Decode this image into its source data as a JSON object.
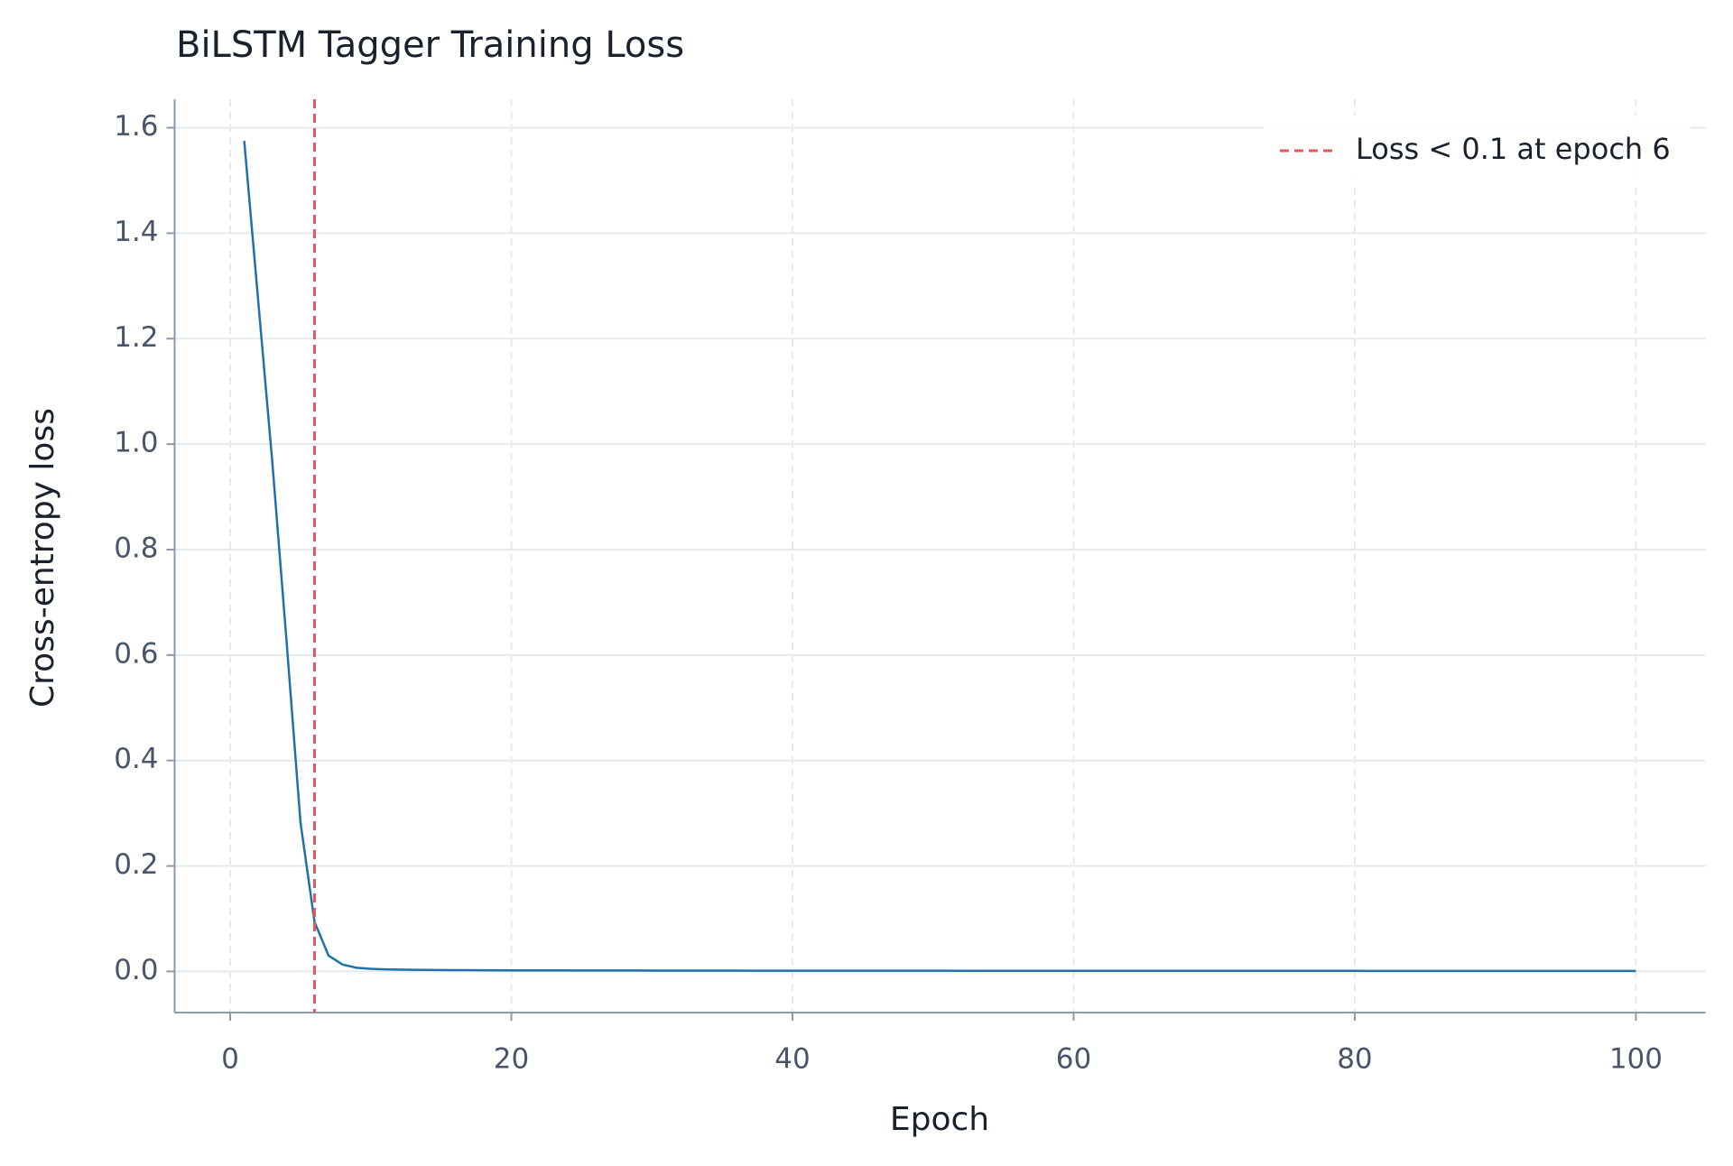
{
  "chart_data": {
    "type": "line",
    "title": "BiLSTM Tagger Training Loss",
    "x_label": "Epoch",
    "y_label": "Cross-entropy loss",
    "x": [
      1,
      2,
      3,
      4,
      5,
      6,
      7,
      8,
      9,
      10,
      11,
      12,
      13,
      14,
      15,
      16,
      17,
      18,
      19,
      20,
      21,
      22,
      23,
      24,
      25,
      26,
      27,
      28,
      29,
      30,
      31,
      32,
      33,
      34,
      35,
      36,
      37,
      38,
      39,
      40,
      41,
      42,
      43,
      44,
      45,
      46,
      47,
      48,
      49,
      50,
      51,
      52,
      53,
      54,
      55,
      56,
      57,
      58,
      59,
      60,
      61,
      62,
      63,
      64,
      65,
      66,
      67,
      68,
      69,
      70,
      71,
      72,
      73,
      74,
      75,
      76,
      77,
      78,
      79,
      80,
      81,
      82,
      83,
      84,
      85,
      86,
      87,
      88,
      89,
      90,
      91,
      92,
      93,
      94,
      95,
      96,
      97,
      98,
      99,
      100
    ],
    "series": [
      {
        "color": "#2070aa",
        "values": [
          1.575,
          1.27,
          0.965,
          0.63,
          0.283,
          0.094,
          0.03,
          0.013,
          0.007,
          0.005,
          0.004,
          0.0035,
          0.0031,
          0.0028,
          0.0026,
          0.0025,
          0.0024,
          0.0023,
          0.0022,
          0.0021,
          0.002,
          0.002,
          0.0019,
          0.0019,
          0.0018,
          0.0018,
          0.0017,
          0.0017,
          0.0017,
          0.0016,
          0.0016,
          0.0016,
          0.0015,
          0.0015,
          0.0015,
          0.0015,
          0.0014,
          0.0014,
          0.0014,
          0.0014,
          0.0014,
          0.0013,
          0.0013,
          0.0013,
          0.0013,
          0.0013,
          0.0013,
          0.0013,
          0.0013,
          0.0013,
          0.0013,
          0.0012,
          0.0012,
          0.0012,
          0.0012,
          0.0012,
          0.0012,
          0.0012,
          0.0012,
          0.0012,
          0.0012,
          0.0012,
          0.0012,
          0.0012,
          0.0012,
          0.0011,
          0.0011,
          0.0011,
          0.0011,
          0.0011,
          0.0011,
          0.0011,
          0.0011,
          0.0011,
          0.0011,
          0.0011,
          0.0011,
          0.0011,
          0.0011,
          0.0011,
          0.001,
          0.001,
          0.001,
          0.001,
          0.001,
          0.001,
          0.001,
          0.001,
          0.001,
          0.001,
          0.001,
          0.001,
          0.001,
          0.001,
          0.001,
          0.0009,
          0.0009,
          0.0009,
          0.0009,
          0.0009
        ]
      }
    ],
    "vlines": [
      {
        "x": 6,
        "label": "Loss < 0.1 at epoch 6",
        "color": "#e05a5a"
      }
    ],
    "xlim": [
      -3.95,
      104.95
    ],
    "xticks": [
      0,
      20,
      40,
      60,
      80,
      100
    ],
    "ylim": [
      -0.078,
      1.654
    ],
    "yticks": [
      {
        "value": 0,
        "label": "0.0"
      },
      0.2,
      0.4,
      0.6,
      0.8,
      {
        "value": 1,
        "label": "1.0"
      },
      1.2,
      1.4,
      1.6
    ],
    "grid": true,
    "legend": "upper right"
  }
}
